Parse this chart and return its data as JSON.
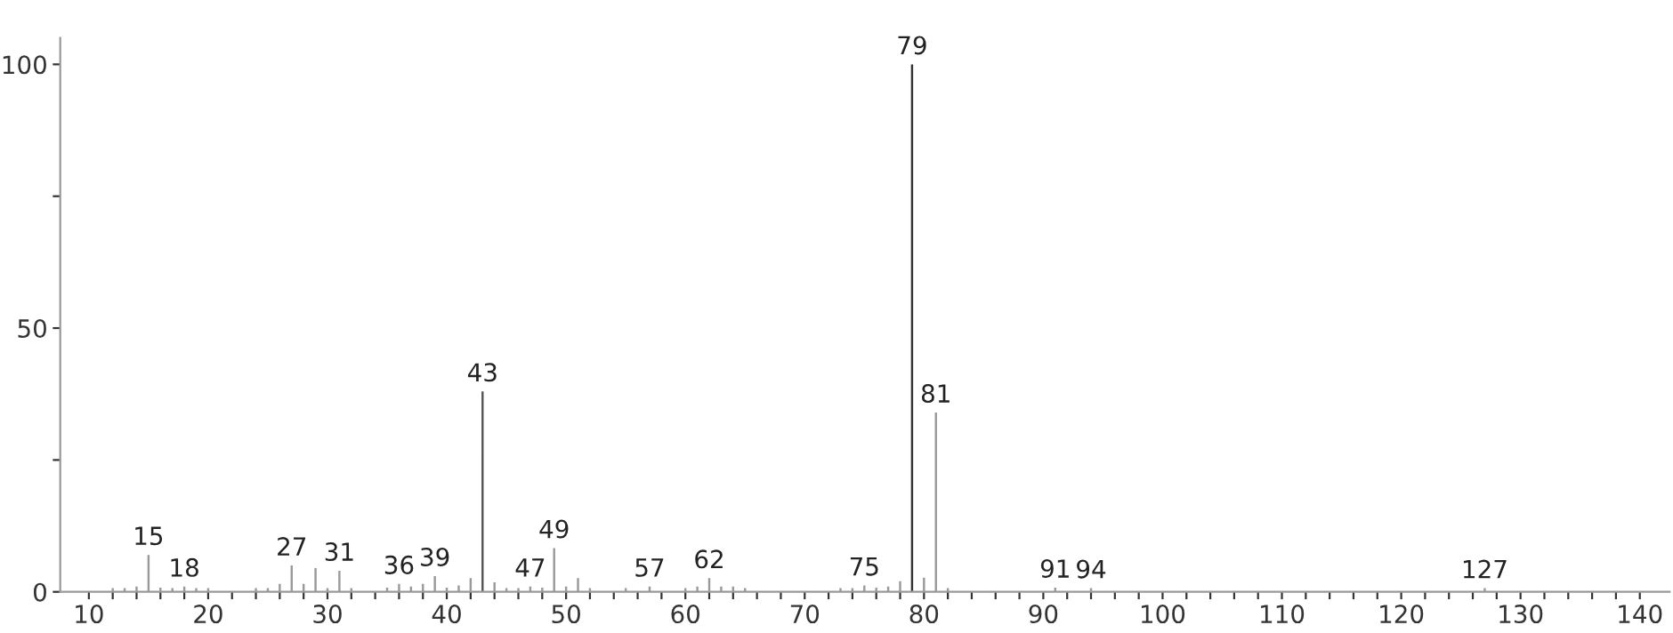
{
  "chart_data": {
    "type": "bar",
    "x": [
      12,
      13,
      14,
      15,
      16,
      17,
      18,
      19,
      20,
      24,
      25,
      26,
      27,
      28,
      29,
      30,
      31,
      32,
      35,
      36,
      37,
      38,
      39,
      40,
      41,
      42,
      43,
      44,
      45,
      46,
      47,
      48,
      49,
      50,
      51,
      52,
      55,
      57,
      60,
      61,
      62,
      63,
      64,
      65,
      73,
      74,
      75,
      76,
      77,
      78,
      79,
      80,
      81,
      82,
      91,
      94,
      127
    ],
    "values": [
      0.7,
      0.7,
      1,
      7,
      0.8,
      0.7,
      1,
      0.7,
      0.7,
      0.7,
      0.7,
      1.5,
      5,
      1.5,
      4.5,
      0.7,
      4,
      0.7,
      0.8,
      1.5,
      1,
      1.5,
      3,
      0.8,
      1.2,
      2.6,
      38,
      1.8,
      0.7,
      0.7,
      1,
      0.8,
      8.3,
      1,
      2.6,
      0.7,
      0.7,
      1,
      0.7,
      1,
      2.6,
      1,
      1,
      0.7,
      0.7,
      0.7,
      1.2,
      0.8,
      1,
      2,
      100,
      2.7,
      34,
      0.7,
      0.8,
      0.7,
      0.7
    ],
    "colors": [
      "#999999",
      "#999999",
      "#999999",
      "#999999",
      "#999999",
      "#999999",
      "#999999",
      "#999999",
      "#999999",
      "#999999",
      "#999999",
      "#999999",
      "#999999",
      "#999999",
      "#999999",
      "#999999",
      "#999999",
      "#999999",
      "#999999",
      "#999999",
      "#999999",
      "#999999",
      "#999999",
      "#999999",
      "#999999",
      "#999999",
      "#555555",
      "#999999",
      "#999999",
      "#999999",
      "#999999",
      "#999999",
      "#999999",
      "#999999",
      "#999999",
      "#999999",
      "#999999",
      "#999999",
      "#999999",
      "#999999",
      "#999999",
      "#999999",
      "#999999",
      "#999999",
      "#999999",
      "#999999",
      "#999999",
      "#999999",
      "#999999",
      "#999999",
      "#333333",
      "#999999",
      "#999999",
      "#999999",
      "#999999",
      "#999999",
      "#999999"
    ],
    "xlim": [
      7.6,
      142.5
    ],
    "ylim": [
      0,
      105
    ],
    "xticks": [
      10,
      {
        "value": 12,
        "label": null
      },
      {
        "value": 14,
        "label": null
      },
      {
        "value": 16,
        "label": null
      },
      {
        "value": 18,
        "label": null
      },
      20,
      {
        "value": 22,
        "label": null
      },
      {
        "value": 24,
        "label": null
      },
      {
        "value": 26,
        "label": null
      },
      {
        "value": 28,
        "label": null
      },
      30,
      {
        "value": 32,
        "label": null
      },
      {
        "value": 34,
        "label": null
      },
      {
        "value": 36,
        "label": null
      },
      {
        "value": 38,
        "label": null
      },
      40,
      {
        "value": 42,
        "label": null
      },
      {
        "value": 44,
        "label": null
      },
      {
        "value": 46,
        "label": null
      },
      {
        "value": 48,
        "label": null
      },
      50,
      {
        "value": 52,
        "label": null
      },
      {
        "value": 54,
        "label": null
      },
      {
        "value": 56,
        "label": null
      },
      {
        "value": 58,
        "label": null
      },
      60,
      {
        "value": 62,
        "label": null
      },
      {
        "value": 64,
        "label": null
      },
      {
        "value": 66,
        "label": null
      },
      {
        "value": 68,
        "label": null
      },
      70,
      {
        "value": 72,
        "label": null
      },
      {
        "value": 74,
        "label": null
      },
      {
        "value": 76,
        "label": null
      },
      {
        "value": 78,
        "label": null
      },
      80,
      {
        "value": 82,
        "label": null
      },
      {
        "value": 84,
        "label": null
      },
      {
        "value": 86,
        "label": null
      },
      {
        "value": 88,
        "label": null
      },
      90,
      {
        "value": 92,
        "label": null
      },
      {
        "value": 94,
        "label": null
      },
      {
        "value": 96,
        "label": null
      },
      {
        "value": 98,
        "label": null
      },
      100,
      {
        "value": 102,
        "label": null
      },
      {
        "value": 104,
        "label": null
      },
      {
        "value": 106,
        "label": null
      },
      {
        "value": 108,
        "label": null
      },
      110,
      {
        "value": 112,
        "label": null
      },
      {
        "value": 114,
        "label": null
      },
      {
        "value": 116,
        "label": null
      },
      {
        "value": 118,
        "label": null
      },
      120,
      {
        "value": 122,
        "label": null
      },
      {
        "value": 124,
        "label": null
      },
      {
        "value": 126,
        "label": null
      },
      {
        "value": 128,
        "label": null
      },
      130,
      {
        "value": 132,
        "label": null
      },
      {
        "value": 134,
        "label": null
      },
      {
        "value": 136,
        "label": null
      },
      {
        "value": 138,
        "label": null
      },
      140
    ],
    "yticks": [
      0,
      {
        "value": 25,
        "label": null
      },
      50,
      {
        "value": 75,
        "label": null
      },
      100
    ],
    "grid": false,
    "legend": false,
    "annotations": [
      {
        "text": "15",
        "x": 15,
        "y": 7
      },
      {
        "text": "18",
        "x": 18,
        "y": 1
      },
      {
        "text": "27",
        "x": 27,
        "y": 5
      },
      {
        "text": "31",
        "x": 31,
        "y": 4
      },
      {
        "text": "36",
        "x": 36,
        "y": 1.5
      },
      {
        "text": "39",
        "x": 39,
        "y": 3
      },
      {
        "text": "43",
        "x": 43,
        "y": 38
      },
      {
        "text": "47",
        "x": 47,
        "y": 1
      },
      {
        "text": "49",
        "x": 49,
        "y": 8.3
      },
      {
        "text": "57",
        "x": 57,
        "y": 1
      },
      {
        "text": "62",
        "x": 62,
        "y": 2.6
      },
      {
        "text": "75",
        "x": 75,
        "y": 1.2
      },
      {
        "text": "79",
        "x": 79,
        "y": 100
      },
      {
        "text": "81",
        "x": 81,
        "y": 34
      },
      {
        "text": "91",
        "x": 91,
        "y": 0.8
      },
      {
        "text": "94",
        "x": 94,
        "y": 0.7
      },
      {
        "text": "127",
        "x": 127,
        "y": 0.7
      }
    ]
  }
}
